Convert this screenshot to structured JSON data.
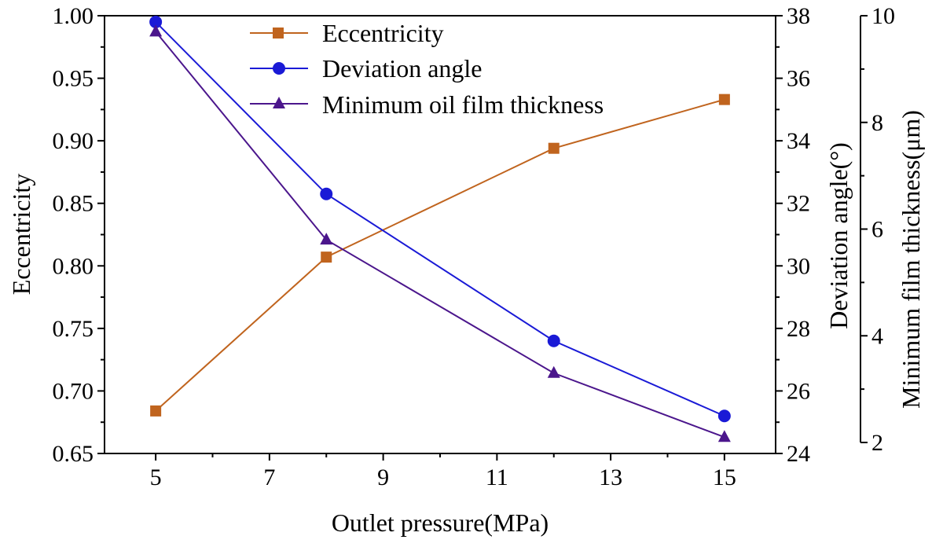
{
  "chart_data": {
    "type": "line",
    "xlabel": "Outlet pressure(MPa)",
    "x": [
      5,
      8,
      12,
      15
    ],
    "xlim": [
      4.1,
      15.9
    ],
    "xticks": [
      "5",
      "7",
      "9",
      "11",
      "13",
      "15"
    ],
    "axes": {
      "y1": {
        "label": "Eccentricity",
        "lim": [
          0.65,
          1.0
        ],
        "ticks": [
          "0.65",
          "0.70",
          "0.75",
          "0.80",
          "0.85",
          "0.90",
          "0.95",
          "1.00"
        ]
      },
      "y2": {
        "label": "Deviation angle(°)",
        "lim": [
          24,
          38
        ],
        "ticks": [
          "24",
          "26",
          "28",
          "30",
          "32",
          "34",
          "36",
          "38"
        ]
      },
      "y3": {
        "label": "Minimum film thickness(μm)",
        "lim": [
          2,
          10
        ],
        "ticks": [
          "2",
          "4",
          "6",
          "8",
          "10"
        ]
      }
    },
    "series": [
      {
        "name": "Eccentricity",
        "axis": "y1",
        "color": "#c0641e",
        "marker": "square",
        "values": [
          0.684,
          0.807,
          0.894,
          0.933
        ]
      },
      {
        "name": "Deviation angle",
        "axis": "y2",
        "color": "#1a1ad6",
        "marker": "circle",
        "values": [
          37.8,
          32.3,
          27.6,
          25.2
        ]
      },
      {
        "name": "Minimum oil film thickness",
        "axis": "y3",
        "color": "#4b168c",
        "marker": "triangle",
        "values": [
          9.7,
          5.8,
          3.3,
          2.1
        ]
      }
    ],
    "legend_position": "top-center",
    "grid": false
  }
}
